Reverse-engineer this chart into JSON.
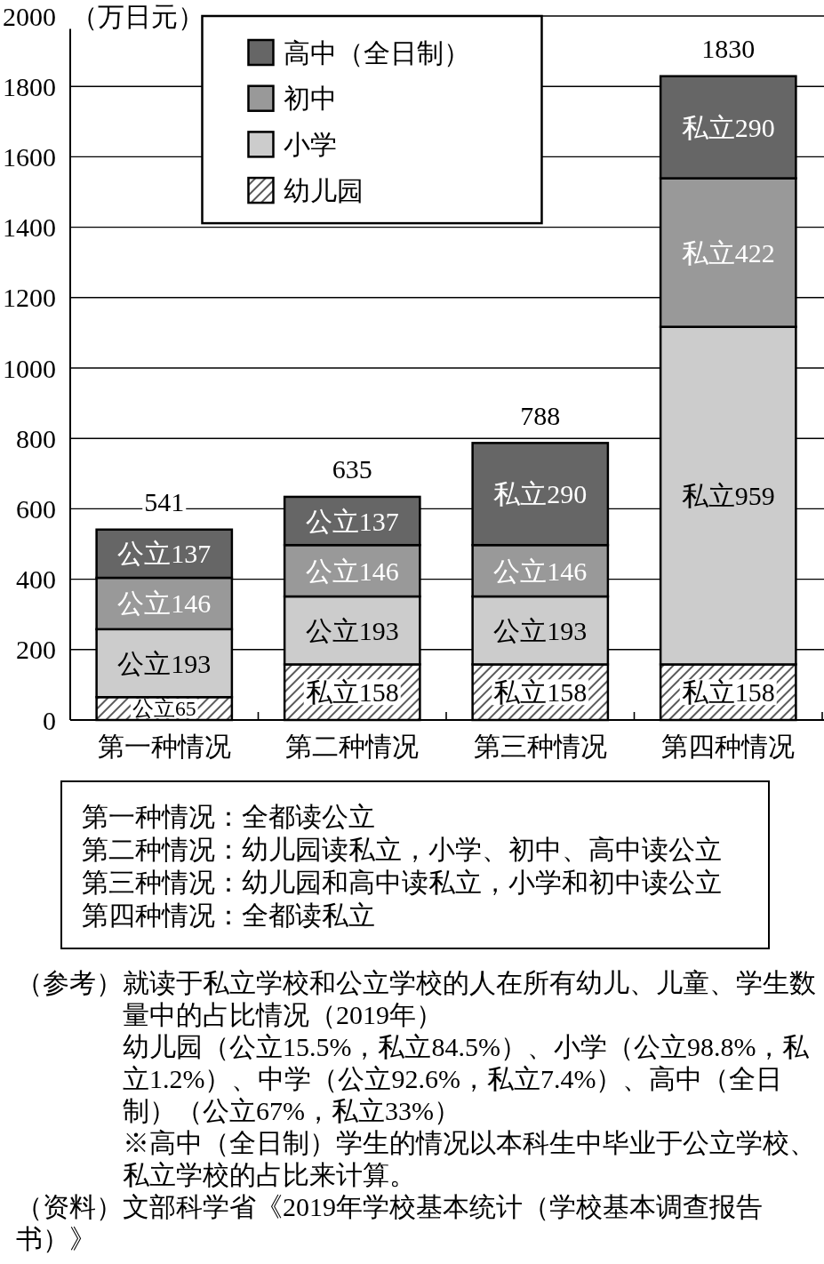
{
  "chart_data": {
    "type": "bar",
    "stacked": true,
    "categories": [
      "第一种情况",
      "第二种情况",
      "第三种情况",
      "第四种情况"
    ],
    "series": [
      {
        "name": "幼儿园",
        "color": "#000000",
        "values": [
          65,
          158,
          158,
          158
        ],
        "value_labels": [
          "公立65",
          "私立158",
          "私立158",
          "私立158"
        ]
      },
      {
        "name": "小学",
        "color": "#cccccc",
        "values": [
          193,
          193,
          193,
          959
        ],
        "value_labels": [
          "公立193",
          "公立193",
          "公立193",
          "私立959"
        ]
      },
      {
        "name": "初中",
        "color": "#999999",
        "values": [
          146,
          146,
          146,
          422
        ],
        "value_labels": [
          "公立146",
          "公立146",
          "公立146",
          "私立422"
        ]
      },
      {
        "name": "高中（全日制）",
        "color": "#666666",
        "values": [
          137,
          137,
          290,
          290
        ],
        "value_labels": [
          "公立137",
          "公立137",
          "私立290",
          "私立290"
        ]
      }
    ],
    "totals": [
      "541",
      "635",
      "788",
      "1830"
    ],
    "ylabel": "（万日元）",
    "ylim": [
      0,
      2000
    ],
    "yticks": [
      0,
      200,
      400,
      600,
      800,
      1000,
      1200,
      1400,
      1600,
      1800,
      2000
    ],
    "grid": "y",
    "legend": "top",
    "annotations": [
      "第一种情况：全都读公立",
      "第二种情况：幼儿园读私立，小学、初中、高中读公立",
      "第三种情况：幼儿园和高中读私立，小学和初中读公立",
      "第四种情况：全都读私立",
      "（参考）就读于私立学校和公立学校的人在所有幼儿、儿童、学生数量中的占比情况（2019年）",
      "幼儿园（公立15.5%，私立84.5%）、小学（公立98.8%，私立1.2%）、中学（公立92.6%，私立7.4%）、高中（全日制）（公立67%，私立33%）",
      "※高中（全日制）学生的情况以本科生中毕业于公立学校、私立学校的占比来计算。",
      "（资料）文部科学省《2019年学校基本统计（学校基本调查报告书）》"
    ]
  }
}
